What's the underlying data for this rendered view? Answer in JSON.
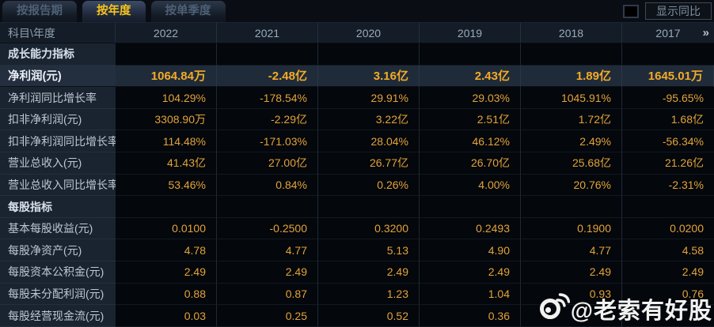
{
  "tabs": [
    {
      "label": "按报告期",
      "active": false
    },
    {
      "label": "按年度",
      "active": true
    },
    {
      "label": "按单季度",
      "active": false
    }
  ],
  "controls": {
    "show_yoy_label": "显示同比",
    "show_yoy_checked": false,
    "more_icon": "»"
  },
  "table": {
    "corner_header": "科目\\年度",
    "year_columns": [
      "2022",
      "2021",
      "2020",
      "2019",
      "2018",
      "2017"
    ],
    "rows": [
      {
        "type": "section",
        "label": "成长能力指标",
        "values": [
          "",
          "",
          "",
          "",
          "",
          ""
        ]
      },
      {
        "type": "highlight",
        "label": "净利润(元)",
        "values": [
          "1064.84万",
          "-2.48亿",
          "3.16亿",
          "2.43亿",
          "1.89亿",
          "1645.01万"
        ]
      },
      {
        "type": "data",
        "label": "净利润同比增长率",
        "values": [
          "104.29%",
          "-178.54%",
          "29.91%",
          "29.03%",
          "1045.91%",
          "-95.65%"
        ]
      },
      {
        "type": "data",
        "label": "扣非净利润(元)",
        "values": [
          "3308.90万",
          "-2.29亿",
          "3.22亿",
          "2.51亿",
          "1.72亿",
          "1.68亿"
        ]
      },
      {
        "type": "data",
        "label": "扣非净利润同比增长率",
        "values": [
          "114.48%",
          "-171.03%",
          "28.04%",
          "46.12%",
          "2.49%",
          "-56.34%"
        ]
      },
      {
        "type": "data",
        "label": "营业总收入(元)",
        "values": [
          "41.43亿",
          "27.00亿",
          "26.77亿",
          "26.70亿",
          "25.68亿",
          "21.26亿"
        ]
      },
      {
        "type": "data",
        "label": "营业总收入同比增长率",
        "values": [
          "53.46%",
          "0.84%",
          "0.26%",
          "4.00%",
          "20.76%",
          "-2.31%"
        ]
      },
      {
        "type": "section",
        "label": "每股指标",
        "values": [
          "",
          "",
          "",
          "",
          "",
          ""
        ]
      },
      {
        "type": "data",
        "label": "基本每股收益(元)",
        "values": [
          "0.0100",
          "-0.2500",
          "0.3200",
          "0.2493",
          "0.1900",
          "0.0200"
        ]
      },
      {
        "type": "data",
        "label": "每股净资产(元)",
        "values": [
          "4.78",
          "4.77",
          "5.13",
          "4.90",
          "4.77",
          "4.58"
        ]
      },
      {
        "type": "data",
        "label": "每股资本公积金(元)",
        "values": [
          "2.49",
          "2.49",
          "2.49",
          "2.49",
          "2.49",
          "2.49"
        ]
      },
      {
        "type": "data",
        "label": "每股未分配利润(元)",
        "values": [
          "0.88",
          "0.87",
          "1.23",
          "1.04",
          "0.93",
          "0.76"
        ]
      },
      {
        "type": "data",
        "label": "每股经营现金流(元)",
        "values": [
          "0.03",
          "0.25",
          "0.52",
          "0.36",
          "",
          ""
        ]
      }
    ]
  },
  "watermark": {
    "text": "@老索有好股",
    "icon": "weibo-icon"
  },
  "colors": {
    "accent_gold": "#f6c41a",
    "value_gold": "#e2a33b",
    "highlight_value_gold": "#f3ab26",
    "label_column_bg": "#1a2330",
    "value_cell_bg": "#04070b",
    "highlight_row_bg": "#202b3a",
    "header_row_bg": "#141c27",
    "page_bg": "#05080c"
  }
}
